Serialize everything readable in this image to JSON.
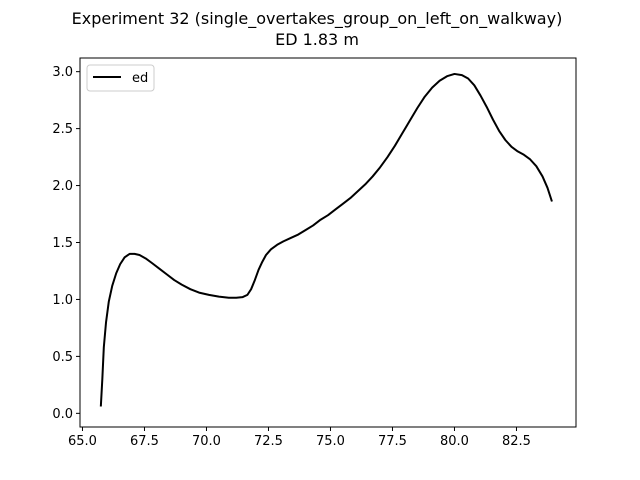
{
  "chart_data": {
    "type": "line",
    "title": "Experiment 32 (single_overtakes_group_on_left_on_walkway)",
    "subtitle": "ED 1.83 m",
    "xlabel": "",
    "ylabel": "",
    "xlim": [
      64.9,
      84.9
    ],
    "ylim": [
      -0.12,
      3.12
    ],
    "xticks": [
      65.0,
      67.5,
      70.0,
      72.5,
      75.0,
      77.5,
      80.0,
      82.5
    ],
    "xtick_labels": [
      "65.0",
      "67.5",
      "70.0",
      "72.5",
      "75.0",
      "77.5",
      "80.0",
      "82.5"
    ],
    "yticks": [
      0.0,
      0.5,
      1.0,
      1.5,
      2.0,
      2.5,
      3.0
    ],
    "ytick_labels": [
      "0.0",
      "0.5",
      "1.0",
      "1.5",
      "2.0",
      "2.5",
      "3.0"
    ],
    "grid": false,
    "legend": {
      "position": "top-left",
      "entries": [
        "ed"
      ]
    },
    "series": [
      {
        "name": "ed",
        "color": "#000000",
        "points": [
          [
            65.74,
            0.06
          ],
          [
            65.8,
            0.3
          ],
          [
            65.86,
            0.58
          ],
          [
            65.95,
            0.8
          ],
          [
            66.06,
            0.98
          ],
          [
            66.2,
            1.12
          ],
          [
            66.36,
            1.23
          ],
          [
            66.52,
            1.31
          ],
          [
            66.7,
            1.37
          ],
          [
            66.9,
            1.4
          ],
          [
            67.1,
            1.4
          ],
          [
            67.3,
            1.39
          ],
          [
            67.55,
            1.36
          ],
          [
            67.8,
            1.32
          ],
          [
            68.1,
            1.27
          ],
          [
            68.4,
            1.22
          ],
          [
            68.7,
            1.17
          ],
          [
            69.0,
            1.13
          ],
          [
            69.35,
            1.09
          ],
          [
            69.7,
            1.06
          ],
          [
            70.1,
            1.04
          ],
          [
            70.5,
            1.025
          ],
          [
            70.9,
            1.015
          ],
          [
            71.2,
            1.015
          ],
          [
            71.45,
            1.02
          ],
          [
            71.65,
            1.04
          ],
          [
            71.8,
            1.09
          ],
          [
            71.95,
            1.17
          ],
          [
            72.1,
            1.26
          ],
          [
            72.25,
            1.33
          ],
          [
            72.4,
            1.39
          ],
          [
            72.6,
            1.44
          ],
          [
            72.85,
            1.48
          ],
          [
            73.1,
            1.51
          ],
          [
            73.4,
            1.54
          ],
          [
            73.7,
            1.57
          ],
          [
            74.0,
            1.61
          ],
          [
            74.3,
            1.65
          ],
          [
            74.6,
            1.7
          ],
          [
            74.9,
            1.74
          ],
          [
            75.2,
            1.79
          ],
          [
            75.5,
            1.84
          ],
          [
            75.8,
            1.89
          ],
          [
            76.1,
            1.95
          ],
          [
            76.4,
            2.01
          ],
          [
            76.7,
            2.08
          ],
          [
            77.0,
            2.16
          ],
          [
            77.3,
            2.25
          ],
          [
            77.6,
            2.35
          ],
          [
            77.9,
            2.46
          ],
          [
            78.2,
            2.57
          ],
          [
            78.5,
            2.68
          ],
          [
            78.8,
            2.78
          ],
          [
            79.1,
            2.86
          ],
          [
            79.4,
            2.92
          ],
          [
            79.7,
            2.96
          ],
          [
            80.0,
            2.98
          ],
          [
            80.3,
            2.97
          ],
          [
            80.55,
            2.94
          ],
          [
            80.8,
            2.88
          ],
          [
            81.05,
            2.79
          ],
          [
            81.3,
            2.69
          ],
          [
            81.55,
            2.58
          ],
          [
            81.8,
            2.48
          ],
          [
            82.05,
            2.4
          ],
          [
            82.3,
            2.34
          ],
          [
            82.55,
            2.3
          ],
          [
            82.8,
            2.27
          ],
          [
            83.05,
            2.23
          ],
          [
            83.3,
            2.17
          ],
          [
            83.55,
            2.08
          ],
          [
            83.75,
            1.98
          ],
          [
            83.93,
            1.86
          ]
        ]
      }
    ]
  }
}
